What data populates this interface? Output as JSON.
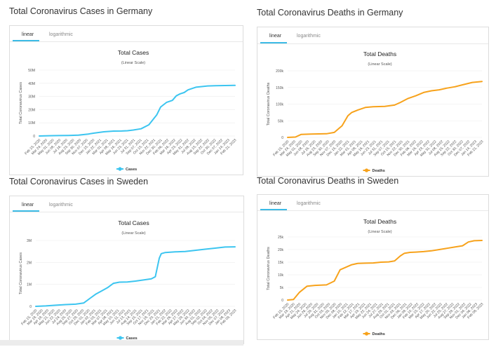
{
  "tabs": {
    "linear": "linear",
    "logarithmic": "logarithmic"
  },
  "colors": {
    "cases": "#3cc5f0",
    "deaths": "#f7a21b"
  },
  "panels": [
    {
      "heading": "Total Coronavirus Cases in Germany",
      "chart_data": {
        "type": "line",
        "title": "Total Cases",
        "subtitle": "(Linear Scale)",
        "ylabel": "Total Coronavirus Cases",
        "legend": "Cases",
        "ylim": [
          0,
          50000000
        ],
        "yticks": [
          0,
          10000000,
          20000000,
          30000000,
          40000000,
          50000000
        ],
        "ytick_labels": [
          "0",
          "10M",
          "20M",
          "30M",
          "40M",
          "50M"
        ],
        "xlabels": [
          "Feb 15, 2020",
          "Mar 24, 2020",
          "May 01, 2020",
          "Jun 08, 2020",
          "Jul 16, 2020",
          "Aug 23, 2020",
          "Sep 30, 2020",
          "Nov 07, 2020",
          "Dec 15, 2020",
          "Jan 22, 2021",
          "Mar 01, 2021",
          "Apr 08, 2021",
          "May 16, 2021",
          "Jun 23, 2021",
          "Jul 31, 2021",
          "Sep 07, 2021",
          "Oct 15, 2021",
          "Nov 22, 2021",
          "Dec 30, 2021",
          "Feb 06, 2022",
          "Mar 16, 2022",
          "Apr 23, 2022",
          "May 31, 2022",
          "Jul 08, 2022",
          "Aug 15, 2022",
          "Sep 22, 2022",
          "Oct 30, 2022",
          "Dec 07, 2022",
          "Jan 14, 2023",
          "Feb 21, 2023"
        ],
        "x": [
          0,
          0.05,
          0.1,
          0.15,
          0.2,
          0.25,
          0.28,
          0.3,
          0.33,
          0.38,
          0.42,
          0.45,
          0.48,
          0.52,
          0.56,
          0.6,
          0.62,
          0.65,
          0.68,
          0.7,
          0.72,
          0.74,
          0.76,
          0.78,
          0.8,
          0.83,
          0.86,
          0.9,
          0.95,
          1.0
        ],
        "y": [
          0,
          200000,
          300000,
          400000,
          700000,
          1500000,
          2200000,
          2600000,
          3200000,
          3700000,
          3800000,
          4000000,
          4500000,
          5500000,
          8500000,
          16000000,
          22000000,
          25500000,
          27000000,
          30500000,
          32000000,
          33000000,
          35000000,
          36000000,
          37000000,
          37500000,
          38000000,
          38200000,
          38300000,
          38400000
        ]
      }
    },
    {
      "heading": "Total Coronavirus Deaths in Germany",
      "chart_data": {
        "type": "line",
        "title": "Total Deaths",
        "subtitle": "(Linear Scale)",
        "ylabel": "Total Coronavirus Deaths",
        "legend": "Deaths",
        "ylim": [
          0,
          200000
        ],
        "yticks": [
          0,
          50000,
          100000,
          150000,
          200000
        ],
        "ytick_labels": [
          "0",
          "50k",
          "100k",
          "150k",
          "200k"
        ],
        "xlabels": [
          "Feb 15, 2020",
          "Mar 24, 2020",
          "May 01, 2020",
          "Jun 08, 2020",
          "Jul 16, 2020",
          "Aug 23, 2020",
          "Sep 30, 2020",
          "Nov 07, 2020",
          "Dec 15, 2020",
          "Jan 22, 2021",
          "Mar 01, 2021",
          "Apr 08, 2021",
          "May 16, 2021",
          "Jun 23, 2021",
          "Jul 31, 2021",
          "Sep 07, 2021",
          "Oct 15, 2021",
          "Nov 22, 2021",
          "Dec 30, 2021",
          "Feb 06, 2022",
          "Mar 16, 2022",
          "Apr 23, 2022",
          "May 31, 2022",
          "Jul 08, 2022",
          "Aug 15, 2022",
          "Sep 22, 2022",
          "Oct 30, 2022",
          "Dec 07, 2022",
          "Jan 14, 2023",
          "Feb 21, 2023"
        ],
        "x": [
          0,
          0.04,
          0.07,
          0.12,
          0.2,
          0.24,
          0.28,
          0.31,
          0.33,
          0.36,
          0.4,
          0.44,
          0.5,
          0.55,
          0.58,
          0.62,
          0.66,
          0.7,
          0.74,
          0.78,
          0.82,
          0.86,
          0.9,
          0.95,
          1.0
        ],
        "y": [
          0,
          1000,
          9000,
          10000,
          11000,
          15000,
          35000,
          65000,
          75000,
          82000,
          90000,
          92000,
          93000,
          97000,
          105000,
          117000,
          125000,
          135000,
          140000,
          143000,
          148000,
          152000,
          158000,
          165000,
          168000
        ]
      }
    },
    {
      "heading": "Total Coronavirus Cases in Sweden",
      "chart_data": {
        "type": "line",
        "title": "Total Cases",
        "subtitle": "(Linear Scale)",
        "ylabel": "Total Coronavirus Cases",
        "legend": "Cases",
        "ylim": [
          0,
          3000000
        ],
        "yticks": [
          0,
          1000000,
          2000000,
          3000000
        ],
        "ytick_labels": [
          "0",
          "1M",
          "2M",
          "3M"
        ],
        "xlabels": [
          "Feb 15, 2020",
          "Mar 18, 2020",
          "Apr 19, 2020",
          "May 21, 2020",
          "Jun 22, 2020",
          "Jul 24, 2020",
          "Aug 25, 2020",
          "Sep 27, 2020",
          "Oct 29, 2020",
          "Dec 01, 2020",
          "Jan 02, 2021",
          "Feb 03, 2021",
          "Mar 07, 2021",
          "Apr 08, 2021",
          "May 10, 2021",
          "Jun 11, 2021",
          "Jul 13, 2021",
          "Aug 14, 2021",
          "Sep 15, 2021",
          "Oct 17, 2021",
          "Nov 18, 2021",
          "Dec 20, 2021",
          "Jan 21, 2022",
          "Feb 22, 2022",
          "Mar 26, 2022",
          "Apr 27, 2022",
          "May 29, 2022",
          "Jun 30, 2022",
          "Aug 01, 2022",
          "Sep 02, 2022",
          "Oct 04, 2022",
          "Nov 05, 2022",
          "Dec 07, 2022",
          "Jan 08, 2023",
          "Feb 09, 2023"
        ],
        "x": [
          0,
          0.05,
          0.1,
          0.15,
          0.2,
          0.24,
          0.27,
          0.3,
          0.33,
          0.36,
          0.39,
          0.42,
          0.46,
          0.5,
          0.54,
          0.58,
          0.6,
          0.62,
          0.63,
          0.65,
          0.7,
          0.75,
          0.8,
          0.85,
          0.9,
          0.95,
          1.0
        ],
        "y": [
          0,
          20000,
          50000,
          80000,
          100000,
          150000,
          350000,
          550000,
          700000,
          850000,
          1050000,
          1100000,
          1110000,
          1150000,
          1200000,
          1250000,
          1350000,
          2200000,
          2400000,
          2450000,
          2480000,
          2500000,
          2550000,
          2600000,
          2650000,
          2700000,
          2710000
        ]
      }
    },
    {
      "heading": "Total Coronavirus Deaths in Sweden",
      "chart_data": {
        "type": "line",
        "title": "Total Deaths",
        "subtitle": "(Linear Scale)",
        "ylabel": "Total Coronavirus Deaths",
        "legend": "Deaths",
        "ylim": [
          0,
          25000
        ],
        "yticks": [
          0,
          5000,
          10000,
          15000,
          20000,
          25000
        ],
        "ytick_labels": [
          "0",
          "5k",
          "10k",
          "15k",
          "20k",
          "25k"
        ],
        "xlabels": [
          "Feb 15, 2020",
          "Mar 19, 2020",
          "Apr 21, 2020",
          "May 24, 2020",
          "Jun 26, 2020",
          "Jul 29, 2020",
          "Aug 31, 2020",
          "Oct 03, 2020",
          "Nov 05, 2020",
          "Dec 08, 2020",
          "Jan 10, 2021",
          "Feb 12, 2021",
          "Mar 17, 2021",
          "Apr 19, 2021",
          "May 22, 2021",
          "Jun 24, 2021",
          "Jul 27, 2021",
          "Aug 29, 2021",
          "Oct 01, 2021",
          "Nov 03, 2021",
          "Dec 06, 2021",
          "Jan 08, 2022",
          "Feb 10, 2022",
          "Mar 15, 2022",
          "Apr 17, 2022",
          "May 20, 2022",
          "Jun 22, 2022",
          "Jul 25, 2022",
          "Aug 27, 2022",
          "Sep 29, 2022",
          "Nov 01, 2022",
          "Dec 04, 2022",
          "Jan 06, 2023",
          "Feb 08, 2023"
        ],
        "x": [
          0,
          0.03,
          0.06,
          0.1,
          0.14,
          0.2,
          0.24,
          0.27,
          0.3,
          0.33,
          0.36,
          0.4,
          0.44,
          0.48,
          0.52,
          0.55,
          0.58,
          0.6,
          0.63,
          0.66,
          0.7,
          0.74,
          0.78,
          0.82,
          0.86,
          0.9,
          0.93,
          0.96,
          1.0
        ],
        "y": [
          0,
          200,
          3000,
          5500,
          5800,
          6000,
          7500,
          12000,
          13000,
          14000,
          14500,
          14600,
          14700,
          15000,
          15100,
          15500,
          17500,
          18500,
          18900,
          19000,
          19200,
          19500,
          20000,
          20500,
          21000,
          21500,
          23000,
          23500,
          23600
        ]
      }
    }
  ]
}
